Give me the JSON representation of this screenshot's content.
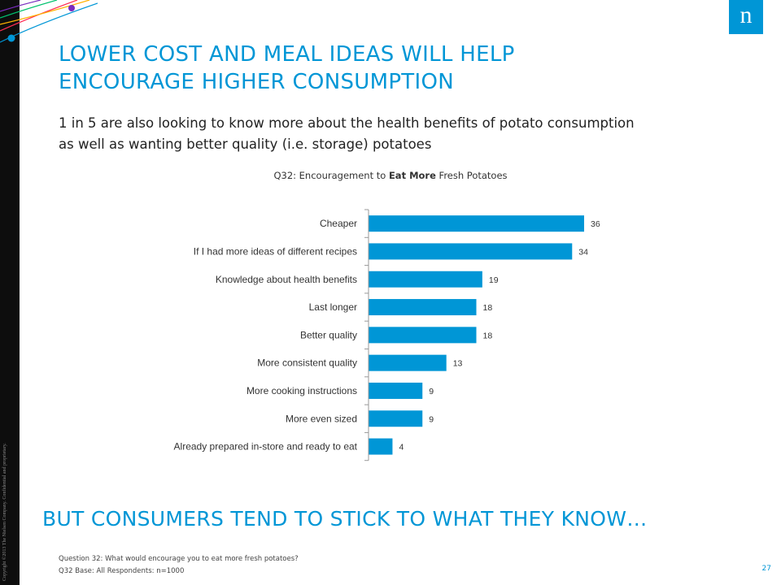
{
  "slide": {
    "title_line1": "LOWER COST AND MEAL IDEAS WILL HELP",
    "title_line2": "ENCOURAGE HIGHER CONSUMPTION",
    "subtitle_line1": "1 in 5 are also looking to know more about the health benefits of potato consumption",
    "subtitle_line2": "as well as wanting better quality (i.e. storage) potatoes",
    "banner": "BUT CONSUMERS TEND TO STICK TO WHAT THEY KNOW…",
    "footnote_question": "Question 32: What would encourage you to eat more fresh potatoes?",
    "footnote_base": "Q32 Base: All Respondents: n=1000",
    "page_number": "27",
    "copyright": "Copyright ©2013 The Nielsen Company. Confidential and proprietary.",
    "logo_letter": "n"
  },
  "colors": {
    "accent": "#0096d6",
    "bar": "#0096d6",
    "strip": "#0d0d0d",
    "deco_lines": [
      "#ff2d55",
      "#ffb100",
      "#00c16e",
      "#7a2dbf",
      "#0096d6"
    ]
  },
  "chart_data": {
    "type": "bar",
    "orientation": "horizontal",
    "title_prefix": "Q32: Encouragement to ",
    "title_bold": "Eat More",
    "title_suffix": " Fresh Potatoes",
    "categories": [
      "Cheaper",
      "If I had more ideas of different recipes",
      "Knowledge about health benefits",
      "Last longer",
      "Better quality",
      "More consistent quality",
      "More cooking instructions",
      "More even sized",
      "Already prepared in-store and ready to eat"
    ],
    "values": [
      36,
      34,
      19,
      18,
      18,
      13,
      9,
      9,
      4
    ],
    "data_labels": true,
    "xlim": [
      0,
      40
    ],
    "grid": false,
    "legend": "none"
  }
}
